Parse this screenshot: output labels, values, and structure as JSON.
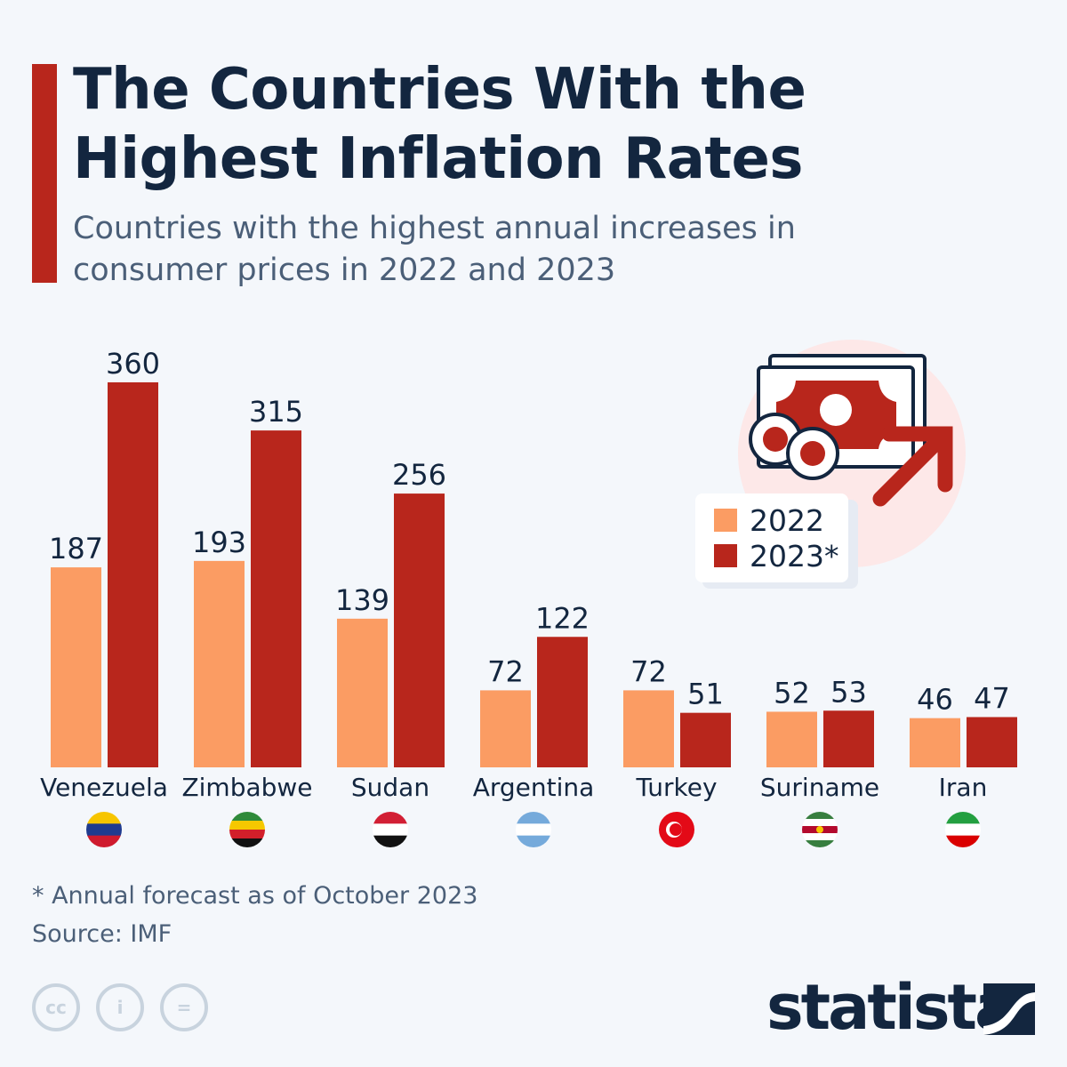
{
  "title": "The Countries With the Highest Inflation Rates",
  "subtitle": "Countries with the highest annual increases in consumer prices in 2022 and 2023",
  "footnote": "* Annual forecast as of October 2023",
  "source": "Source: IMF",
  "brand": "statista",
  "icons": [
    "cc-icon",
    "attribution-icon",
    "no-derivatives-icon",
    "money-rising-icon"
  ],
  "chart_data": {
    "type": "bar",
    "categories": [
      "Venezuela",
      "Zimbabwe",
      "Sudan",
      "Argentina",
      "Turkey",
      "Suriname",
      "Iran"
    ],
    "series": [
      {
        "name": "2022",
        "color": "#fb9c63",
        "values": [
          187,
          193,
          139,
          72,
          72,
          52,
          46
        ]
      },
      {
        "name": "2023*",
        "color": "#b8261c",
        "values": [
          360,
          315,
          256,
          122,
          51,
          53,
          47
        ]
      }
    ],
    "ylim": [
      0,
      360
    ],
    "grid": false,
    "legend": "top-right",
    "data_labels": true
  }
}
